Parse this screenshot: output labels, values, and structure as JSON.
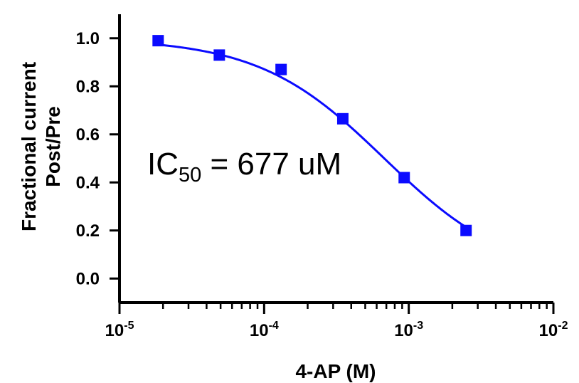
{
  "chart_data": {
    "type": "scatter",
    "x_scale": "log",
    "x": [
      1.85e-05,
      4.9e-05,
      0.000131,
      0.00035,
      0.00093,
      0.00249
    ],
    "y": [
      0.99,
      0.93,
      0.87,
      0.665,
      0.42,
      0.2
    ],
    "fit_curve": {
      "model": "inhibition_dose_response",
      "ic50": 0.000677,
      "top": 1.0,
      "bottom": 0.0,
      "hill": 1.0
    },
    "xlim": [
      1e-05,
      0.01
    ],
    "ylim": [
      -0.1,
      1.1
    ],
    "yticks": [
      0.0,
      0.2,
      0.4,
      0.6,
      0.8,
      1.0
    ],
    "ytick_labels": [
      "0.0",
      "0.2",
      "0.4",
      "0.6",
      "0.8",
      "1.0"
    ],
    "xticks": [
      1e-05,
      0.0001,
      0.001,
      0.01
    ],
    "xtick_labels": [
      {
        "base": "10",
        "exp": "-5"
      },
      {
        "base": "10",
        "exp": "-4"
      },
      {
        "base": "10",
        "exp": "-3"
      },
      {
        "base": "10",
        "exp": "-2"
      }
    ],
    "xlabel": "4-AP (M)",
    "ylabel_line1": "Fractional current",
    "ylabel_line2": "Post/Pre",
    "annotation": {
      "prefix": "IC",
      "subscript": "50",
      "suffix": " = 677 uM"
    },
    "colors": {
      "series": "#0b0bff",
      "axes": "#000000"
    },
    "grid": false,
    "legend": "none"
  }
}
